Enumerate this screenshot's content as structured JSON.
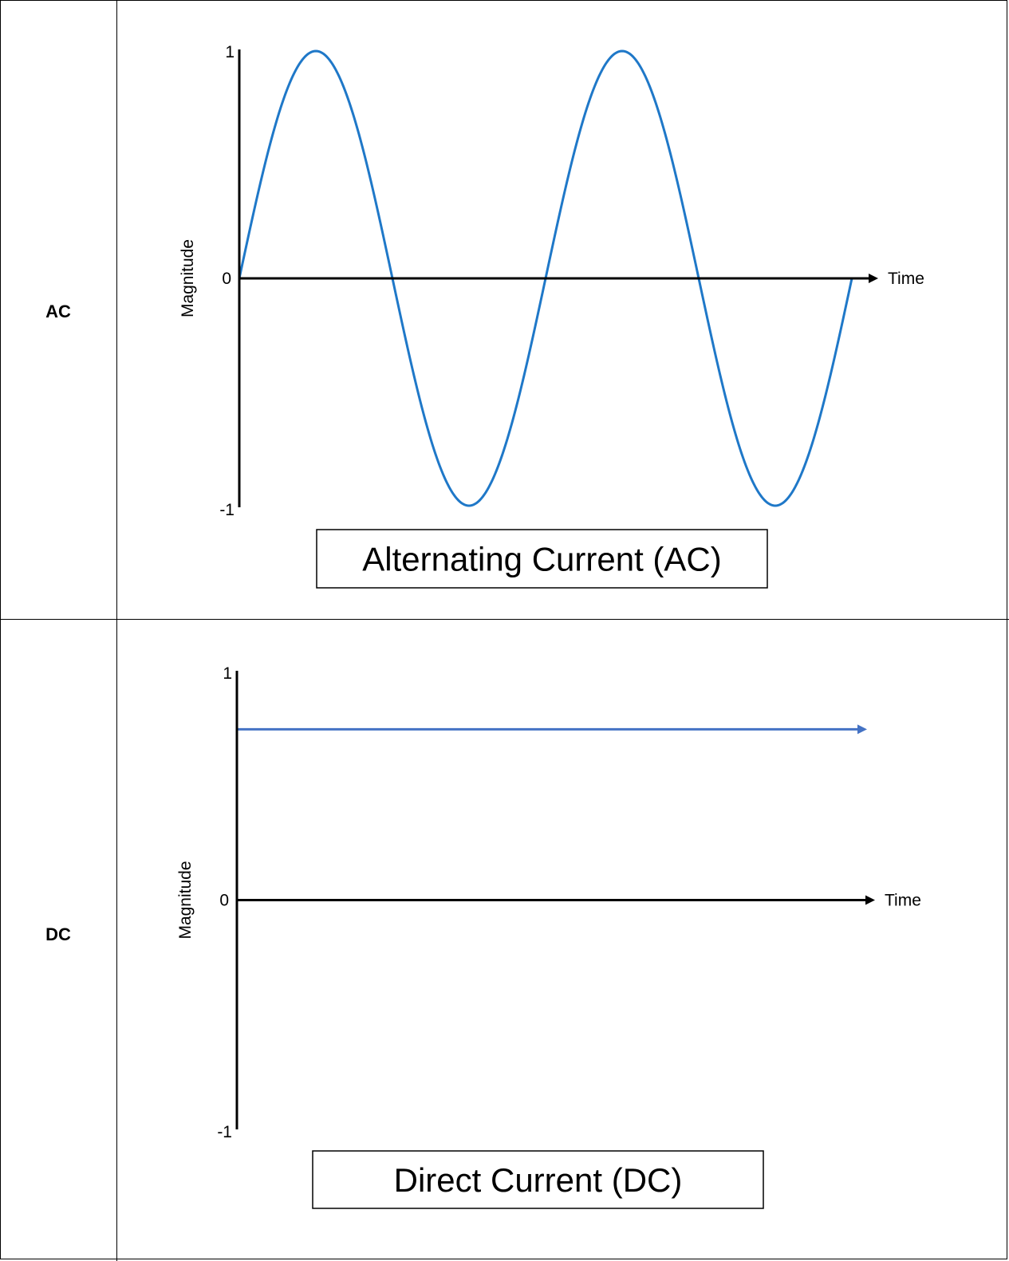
{
  "rows": [
    {
      "label": "AC"
    },
    {
      "label": "DC"
    }
  ],
  "chart_data": [
    {
      "type": "line",
      "title": "Alternating Current (AC)",
      "xlabel": "Time",
      "ylabel": "Magnitude",
      "ylim": [
        -1,
        1
      ],
      "yticks": [
        "1",
        "0",
        "-1"
      ],
      "grid": false,
      "series": [
        {
          "color": "#1f78c8",
          "x": [
            0,
            0.5,
            1,
            1.5,
            2,
            2.5,
            3,
            3.5,
            4
          ],
          "y": [
            0,
            1,
            0,
            -1,
            0,
            1,
            0,
            -1,
            0
          ]
        }
      ]
    },
    {
      "type": "line",
      "title": "Direct Current (DC)",
      "xlabel": "Time",
      "ylabel": "Magnitude",
      "ylim": [
        -1,
        1
      ],
      "yticks": [
        "1",
        "0",
        "-1"
      ],
      "grid": false,
      "series": [
        {
          "color": "#4472c4",
          "x": [
            0,
            4.2
          ],
          "y": [
            0.75,
            0.75
          ]
        }
      ]
    }
  ]
}
